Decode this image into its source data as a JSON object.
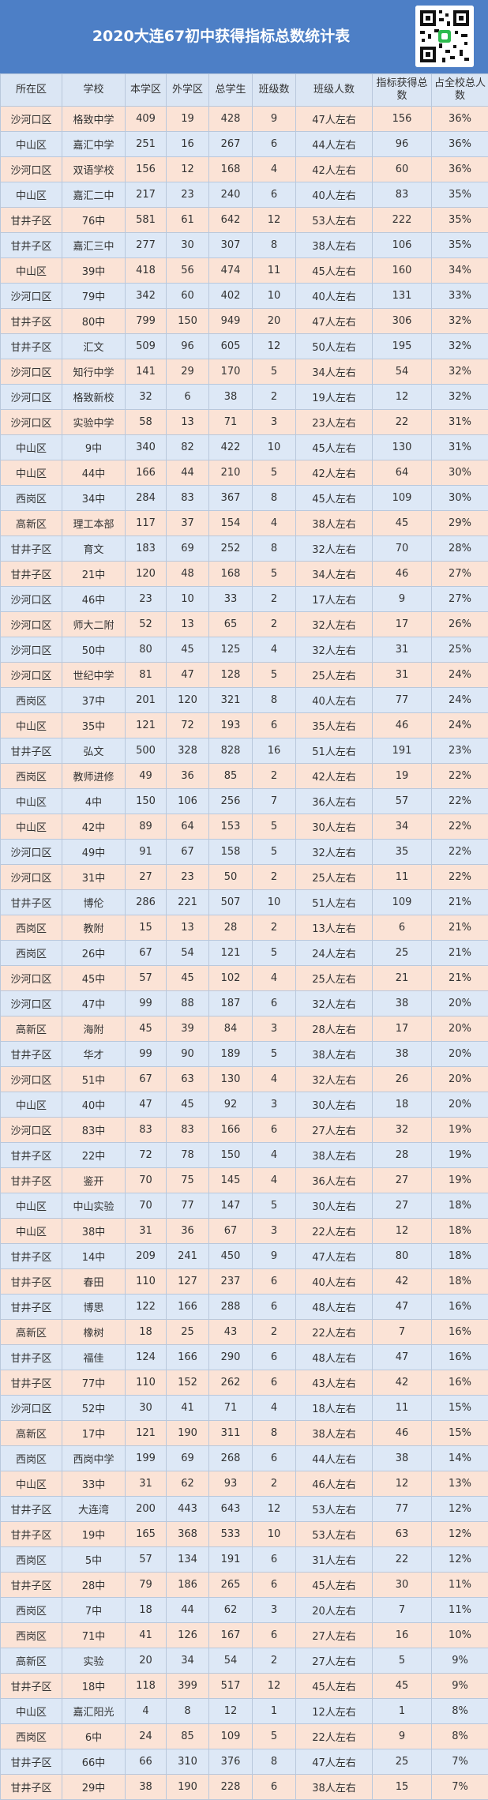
{
  "title": "2020大连67初中获得指标总数统计表",
  "colors": {
    "header_bg": "#4d7fc6",
    "head_row_bg": "#dbe6f4",
    "row_odd": "#fbe3d6",
    "row_even": "#dde8f6"
  },
  "qr_icon": "qr-code-icon",
  "columns": [
    "所在区",
    "学校",
    "本学区",
    "外学区",
    "总学生",
    "班级数",
    "班级人数",
    "指标获得总数",
    "占全校总人数"
  ],
  "rows": [
    [
      "沙河口区",
      "格致中学",
      "409",
      "19",
      "428",
      "9",
      "47人左右",
      "156",
      "36%"
    ],
    [
      "中山区",
      "嘉汇中学",
      "251",
      "16",
      "267",
      "6",
      "44人左右",
      "96",
      "36%"
    ],
    [
      "沙河口区",
      "双语学校",
      "156",
      "12",
      "168",
      "4",
      "42人左右",
      "60",
      "36%"
    ],
    [
      "中山区",
      "嘉汇二中",
      "217",
      "23",
      "240",
      "6",
      "40人左右",
      "83",
      "35%"
    ],
    [
      "甘井子区",
      "76中",
      "581",
      "61",
      "642",
      "12",
      "53人左右",
      "222",
      "35%"
    ],
    [
      "甘井子区",
      "嘉汇三中",
      "277",
      "30",
      "307",
      "8",
      "38人左右",
      "106",
      "35%"
    ],
    [
      "中山区",
      "39中",
      "418",
      "56",
      "474",
      "11",
      "45人左右",
      "160",
      "34%"
    ],
    [
      "沙河口区",
      "79中",
      "342",
      "60",
      "402",
      "10",
      "40人左右",
      "131",
      "33%"
    ],
    [
      "甘井子区",
      "80中",
      "799",
      "150",
      "949",
      "20",
      "47人左右",
      "306",
      "32%"
    ],
    [
      "甘井子区",
      "汇文",
      "509",
      "96",
      "605",
      "12",
      "50人左右",
      "195",
      "32%"
    ],
    [
      "沙河口区",
      "知行中学",
      "141",
      "29",
      "170",
      "5",
      "34人左右",
      "54",
      "32%"
    ],
    [
      "沙河口区",
      "格致新校",
      "32",
      "6",
      "38",
      "2",
      "19人左右",
      "12",
      "32%"
    ],
    [
      "沙河口区",
      "实验中学",
      "58",
      "13",
      "71",
      "3",
      "23人左右",
      "22",
      "31%"
    ],
    [
      "中山区",
      "9中",
      "340",
      "82",
      "422",
      "10",
      "45人左右",
      "130",
      "31%"
    ],
    [
      "中山区",
      "44中",
      "166",
      "44",
      "210",
      "5",
      "42人左右",
      "64",
      "30%"
    ],
    [
      "西岗区",
      "34中",
      "284",
      "83",
      "367",
      "8",
      "45人左右",
      "109",
      "30%"
    ],
    [
      "高新区",
      "理工本部",
      "117",
      "37",
      "154",
      "4",
      "38人左右",
      "45",
      "29%"
    ],
    [
      "甘井子区",
      "育文",
      "183",
      "69",
      "252",
      "8",
      "32人左右",
      "70",
      "28%"
    ],
    [
      "甘井子区",
      "21中",
      "120",
      "48",
      "168",
      "5",
      "34人左右",
      "46",
      "27%"
    ],
    [
      "沙河口区",
      "46中",
      "23",
      "10",
      "33",
      "2",
      "17人左右",
      "9",
      "27%"
    ],
    [
      "沙河口区",
      "师大二附",
      "52",
      "13",
      "65",
      "2",
      "32人左右",
      "17",
      "26%"
    ],
    [
      "沙河口区",
      "50中",
      "80",
      "45",
      "125",
      "4",
      "32人左右",
      "31",
      "25%"
    ],
    [
      "沙河口区",
      "世纪中学",
      "81",
      "47",
      "128",
      "5",
      "25人左右",
      "31",
      "24%"
    ],
    [
      "西岗区",
      "37中",
      "201",
      "120",
      "321",
      "8",
      "40人左右",
      "77",
      "24%"
    ],
    [
      "中山区",
      "35中",
      "121",
      "72",
      "193",
      "6",
      "35人左右",
      "46",
      "24%"
    ],
    [
      "甘井子区",
      "弘文",
      "500",
      "328",
      "828",
      "16",
      "51人左右",
      "191",
      "23%"
    ],
    [
      "西岗区",
      "教师进修",
      "49",
      "36",
      "85",
      "2",
      "42人左右",
      "19",
      "22%"
    ],
    [
      "中山区",
      "4中",
      "150",
      "106",
      "256",
      "7",
      "36人左右",
      "57",
      "22%"
    ],
    [
      "中山区",
      "42中",
      "89",
      "64",
      "153",
      "5",
      "30人左右",
      "34",
      "22%"
    ],
    [
      "沙河口区",
      "49中",
      "91",
      "67",
      "158",
      "5",
      "32人左右",
      "35",
      "22%"
    ],
    [
      "沙河口区",
      "31中",
      "27",
      "23",
      "50",
      "2",
      "25人左右",
      "11",
      "22%"
    ],
    [
      "甘井子区",
      "博伦",
      "286",
      "221",
      "507",
      "10",
      "51人左右",
      "109",
      "21%"
    ],
    [
      "西岗区",
      "教附",
      "15",
      "13",
      "28",
      "2",
      "13人左右",
      "6",
      "21%"
    ],
    [
      "西岗区",
      "26中",
      "67",
      "54",
      "121",
      "5",
      "24人左右",
      "25",
      "21%"
    ],
    [
      "沙河口区",
      "45中",
      "57",
      "45",
      "102",
      "4",
      "25人左右",
      "21",
      "21%"
    ],
    [
      "沙河口区",
      "47中",
      "99",
      "88",
      "187",
      "6",
      "32人左右",
      "38",
      "20%"
    ],
    [
      "高新区",
      "海附",
      "45",
      "39",
      "84",
      "3",
      "28人左右",
      "17",
      "20%"
    ],
    [
      "甘井子区",
      "华才",
      "99",
      "90",
      "189",
      "5",
      "38人左右",
      "38",
      "20%"
    ],
    [
      "沙河口区",
      "51中",
      "67",
      "63",
      "130",
      "4",
      "32人左右",
      "26",
      "20%"
    ],
    [
      "中山区",
      "40中",
      "47",
      "45",
      "92",
      "3",
      "30人左右",
      "18",
      "20%"
    ],
    [
      "沙河口区",
      "83中",
      "83",
      "83",
      "166",
      "6",
      "27人左右",
      "32",
      "19%"
    ],
    [
      "甘井子区",
      "22中",
      "72",
      "78",
      "150",
      "4",
      "38人左右",
      "28",
      "19%"
    ],
    [
      "甘井子区",
      "鉴开",
      "70",
      "75",
      "145",
      "4",
      "36人左右",
      "27",
      "19%"
    ],
    [
      "中山区",
      "中山实验",
      "70",
      "77",
      "147",
      "5",
      "30人左右",
      "27",
      "18%"
    ],
    [
      "中山区",
      "38中",
      "31",
      "36",
      "67",
      "3",
      "22人左右",
      "12",
      "18%"
    ],
    [
      "甘井子区",
      "14中",
      "209",
      "241",
      "450",
      "9",
      "47人左右",
      "80",
      "18%"
    ],
    [
      "甘井子区",
      "春田",
      "110",
      "127",
      "237",
      "6",
      "40人左右",
      "42",
      "18%"
    ],
    [
      "甘井子区",
      "博思",
      "122",
      "166",
      "288",
      "6",
      "48人左右",
      "47",
      "16%"
    ],
    [
      "高新区",
      "橡树",
      "18",
      "25",
      "43",
      "2",
      "22人左右",
      "7",
      "16%"
    ],
    [
      "甘井子区",
      "福佳",
      "124",
      "166",
      "290",
      "6",
      "48人左右",
      "47",
      "16%"
    ],
    [
      "甘井子区",
      "77中",
      "110",
      "152",
      "262",
      "6",
      "43人左右",
      "42",
      "16%"
    ],
    [
      "沙河口区",
      "52中",
      "30",
      "41",
      "71",
      "4",
      "18人左右",
      "11",
      "15%"
    ],
    [
      "高新区",
      "17中",
      "121",
      "190",
      "311",
      "8",
      "38人左右",
      "46",
      "15%"
    ],
    [
      "西岗区",
      "西岗中学",
      "199",
      "69",
      "268",
      "6",
      "44人左右",
      "38",
      "14%"
    ],
    [
      "中山区",
      "33中",
      "31",
      "62",
      "93",
      "2",
      "46人左右",
      "12",
      "13%"
    ],
    [
      "甘井子区",
      "大连湾",
      "200",
      "443",
      "643",
      "12",
      "53人左右",
      "77",
      "12%"
    ],
    [
      "甘井子区",
      "19中",
      "165",
      "368",
      "533",
      "10",
      "53人左右",
      "63",
      "12%"
    ],
    [
      "西岗区",
      "5中",
      "57",
      "134",
      "191",
      "6",
      "31人左右",
      "22",
      "12%"
    ],
    [
      "甘井子区",
      "28中",
      "79",
      "186",
      "265",
      "6",
      "45人左右",
      "30",
      "11%"
    ],
    [
      "西岗区",
      "7中",
      "18",
      "44",
      "62",
      "3",
      "20人左右",
      "7",
      "11%"
    ],
    [
      "西岗区",
      "71中",
      "41",
      "126",
      "167",
      "6",
      "27人左右",
      "16",
      "10%"
    ],
    [
      "高新区",
      "实验",
      "20",
      "34",
      "54",
      "2",
      "27人左右",
      "5",
      "9%"
    ],
    [
      "甘井子区",
      "18中",
      "118",
      "399",
      "517",
      "12",
      "45人左右",
      "45",
      "9%"
    ],
    [
      "中山区",
      "嘉汇阳光",
      "4",
      "8",
      "12",
      "1",
      "12人左右",
      "1",
      "8%"
    ],
    [
      "西岗区",
      "6中",
      "24",
      "85",
      "109",
      "5",
      "22人左右",
      "9",
      "8%"
    ],
    [
      "甘井子区",
      "66中",
      "66",
      "310",
      "376",
      "8",
      "47人左右",
      "25",
      "7%"
    ],
    [
      "甘井子区",
      "29中",
      "38",
      "190",
      "228",
      "6",
      "38人左右",
      "15",
      "7%"
    ]
  ]
}
